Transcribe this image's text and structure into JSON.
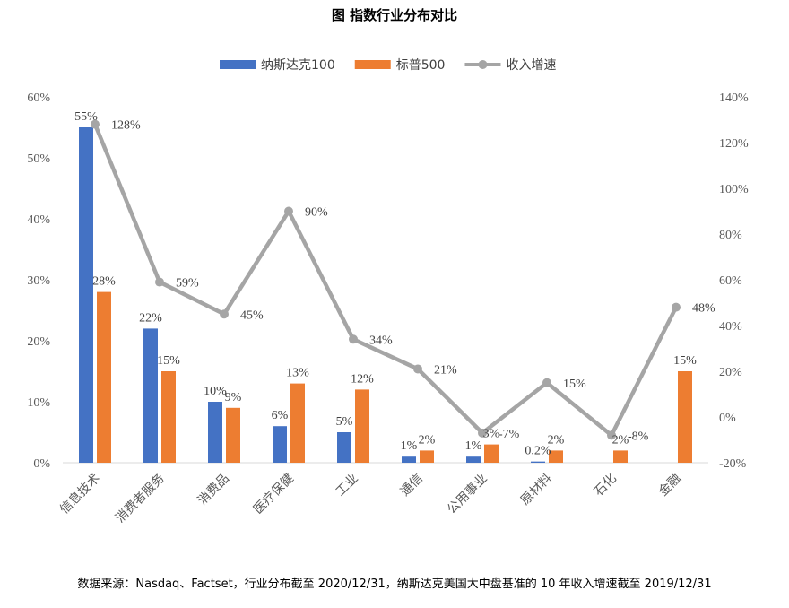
{
  "chart_data": {
    "type": "bar",
    "title": "图  指数行业分布对比",
    "categories": [
      "信息技术",
      "消费者服务",
      "消费品",
      "医疗保健",
      "工业",
      "通信",
      "公用事业",
      "原材料",
      "石化",
      "金融"
    ],
    "series": [
      {
        "name": "纳斯达克100",
        "type": "bar",
        "axis": "left",
        "color": "#4472C4",
        "values": [
          55,
          22,
          10,
          6,
          5,
          1,
          1,
          0.2,
          0,
          0
        ],
        "labels": [
          "55%",
          "22%",
          "10%",
          "6%",
          "5%",
          "1%",
          "1%",
          "0.2%",
          "",
          ""
        ]
      },
      {
        "name": "标普500",
        "type": "bar",
        "axis": "left",
        "color": "#ED7D31",
        "values": [
          28,
          15,
          9,
          13,
          12,
          2,
          3,
          2,
          2,
          15
        ],
        "labels": [
          "28%",
          "15%",
          "9%",
          "13%",
          "12%",
          "2%",
          "3%",
          "2%",
          "2%",
          "15%"
        ]
      },
      {
        "name": "收入增速",
        "type": "line",
        "axis": "right",
        "color": "#A5A5A5",
        "values": [
          128,
          59,
          45,
          90,
          34,
          21,
          -7,
          15,
          -8,
          48
        ],
        "labels": [
          "128%",
          "59%",
          "45%",
          "90%",
          "34%",
          "21%",
          "-7%",
          "15%",
          "-8%",
          "48%"
        ]
      }
    ],
    "y_left": {
      "min": 0,
      "max": 60,
      "step": 10,
      "ticks": [
        "0%",
        "10%",
        "20%",
        "30%",
        "40%",
        "50%",
        "60%"
      ]
    },
    "y_right": {
      "min": -20,
      "max": 140,
      "step": 20,
      "ticks": [
        "-20%",
        "0%",
        "20%",
        "40%",
        "60%",
        "80%",
        "100%",
        "120%",
        "140%"
      ]
    },
    "legend_position": "top",
    "grid": false
  },
  "source_text": "数据来源：Nasdaq、Factset，行业分布截至 2020/12/31，纳斯达克美国大中盘基准的 10 年收入增速截至 2019/12/31"
}
